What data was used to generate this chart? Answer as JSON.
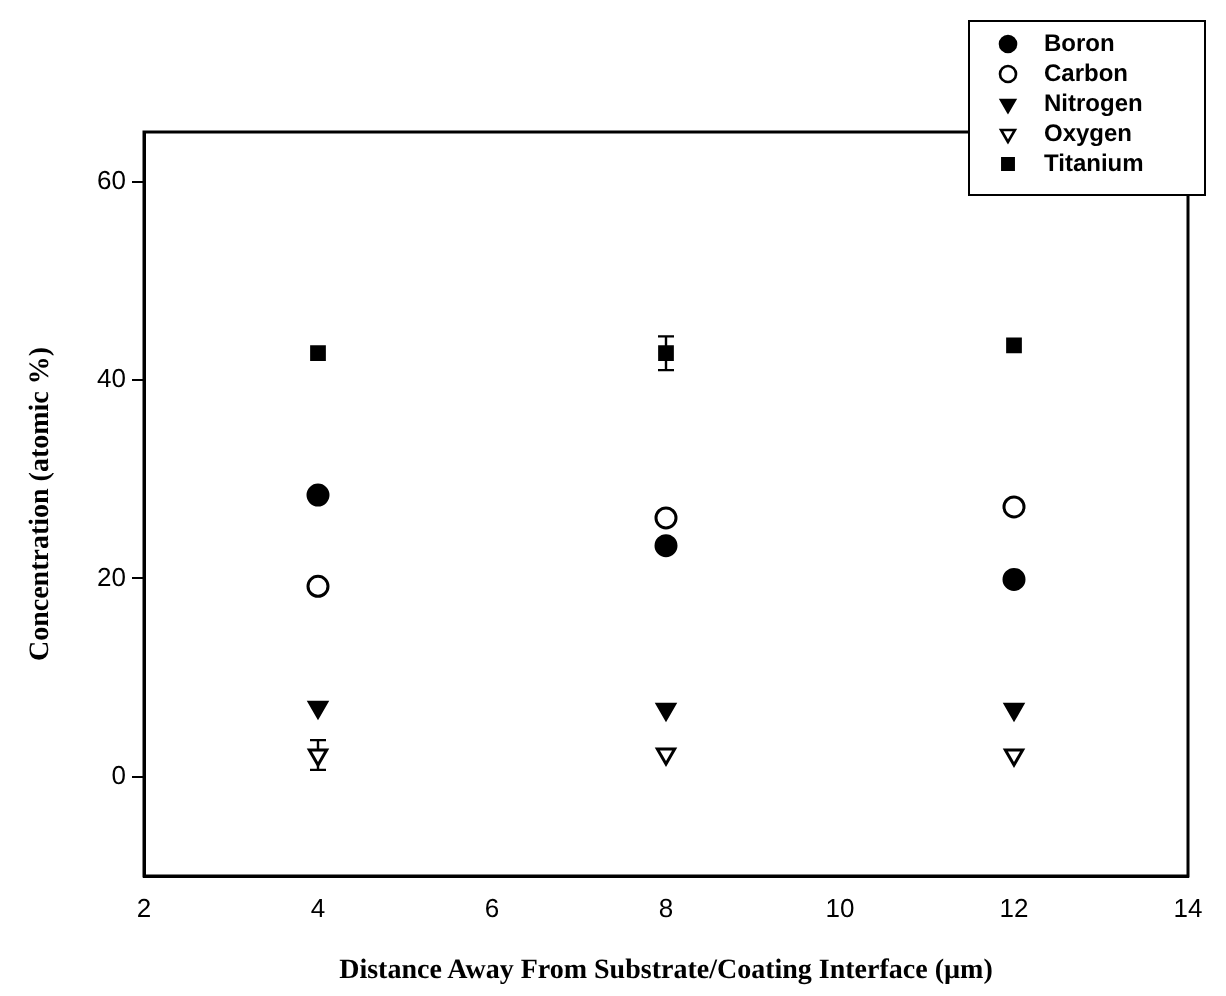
{
  "chart_data": {
    "type": "scatter",
    "xlabel": "Distance Away From Substrate/Coating Interface (µm)",
    "ylabel": "Concentration (atomic %)",
    "xlim": [
      2,
      14
    ],
    "xticks": [
      2,
      4,
      6,
      8,
      10,
      12,
      14
    ],
    "ylim": [
      -10,
      65
    ],
    "yticks": [
      0,
      20,
      40,
      60
    ],
    "grid": false,
    "legend": "top right",
    "x": [
      4,
      8,
      12
    ],
    "series": [
      {
        "name": "Boron",
        "color": "#000000",
        "marker": "circle",
        "values": [
          28.4,
          23.3,
          19.9
        ]
      },
      {
        "name": "Carbon",
        "color": "#000000",
        "marker": "circle-open",
        "values": [
          19.2,
          26.1,
          27.2
        ]
      },
      {
        "name": "Nitrogen",
        "color": "#000000",
        "marker": "triangle-down",
        "values": [
          7.0,
          6.8,
          6.8
        ]
      },
      {
        "name": "Oxygen",
        "color": "#000000",
        "marker": "triangle-down-open",
        "values": [
          2.2,
          2.3,
          2.2
        ],
        "errors": [
          1.5,
          null,
          null
        ]
      },
      {
        "name": "Titanium",
        "color": "#000000",
        "marker": "square",
        "values": [
          42.7,
          42.7,
          43.5
        ],
        "errors": [
          null,
          1.7,
          null
        ]
      }
    ]
  }
}
